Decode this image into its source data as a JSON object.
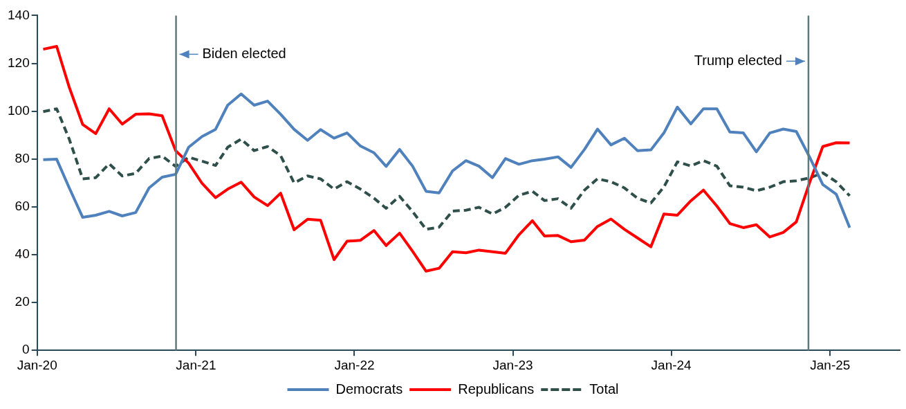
{
  "chart_data": {
    "type": "line",
    "x": [
      "2020-01-15",
      "2020-02-15",
      "2020-03-15",
      "2020-04-15",
      "2020-05-15",
      "2020-06-15",
      "2020-07-15",
      "2020-08-15",
      "2020-09-15",
      "2020-10-15",
      "2020-11-15",
      "2020-12-15",
      "2021-01-15",
      "2021-02-15",
      "2021-03-15",
      "2021-04-15",
      "2021-05-15",
      "2021-06-15",
      "2021-07-15",
      "2021-08-15",
      "2021-09-15",
      "2021-10-15",
      "2021-11-15",
      "2021-12-15",
      "2022-01-15",
      "2022-02-15",
      "2022-03-15",
      "2022-04-15",
      "2022-05-15",
      "2022-06-15",
      "2022-07-15",
      "2022-08-15",
      "2022-09-15",
      "2022-10-15",
      "2022-11-15",
      "2022-12-15",
      "2023-01-15",
      "2023-02-15",
      "2023-03-15",
      "2023-04-15",
      "2023-05-15",
      "2023-06-15",
      "2023-07-15",
      "2023-08-15",
      "2023-09-15",
      "2023-10-15",
      "2023-11-15",
      "2023-12-15",
      "2024-01-15",
      "2024-02-15",
      "2024-03-15",
      "2024-04-15",
      "2024-05-15",
      "2024-06-15",
      "2024-07-15",
      "2024-08-15",
      "2024-09-15",
      "2024-10-15",
      "2024-11-15",
      "2024-12-15",
      "2025-01-15",
      "2025-02-15"
    ],
    "series": [
      {
        "name": "Democrats",
        "color": "#4f81bd",
        "line_style": "solid",
        "values": [
          79.7,
          79.9,
          67.9,
          55.6,
          56.5,
          58.1,
          56.2,
          57.6,
          67.9,
          72.4,
          73.6,
          84.9,
          89.4,
          92.4,
          102.5,
          107.2,
          102.5,
          104.2,
          98.7,
          92.4,
          87.8,
          92.3,
          88.7,
          90.9,
          85.4,
          82.6,
          76.9,
          84,
          77,
          66.5,
          65.8,
          75,
          79.3,
          77,
          72.2,
          80.2,
          77.8,
          79.3,
          79.9,
          80.9,
          76.5,
          84,
          92.5,
          85.9,
          88.7,
          83.5,
          83.8,
          90.9,
          101.7,
          94.7,
          101,
          101,
          91.3,
          90.9,
          83,
          90.9,
          92.5,
          91.5,
          80.7,
          69.3,
          65.3,
          51.3
        ]
      },
      {
        "name": "Republicans",
        "color": "#ff0000",
        "line_style": "solid",
        "values": [
          125.9,
          127.1,
          110,
          94.4,
          90.6,
          101,
          94.6,
          98.7,
          98.9,
          98.1,
          83.5,
          78.3,
          69.8,
          63.8,
          67.4,
          70.3,
          64.1,
          60.5,
          65.7,
          50.4,
          54.8,
          54.4,
          37.9,
          45.6,
          46,
          50.1,
          43.8,
          49,
          41.4,
          33.1,
          34.3,
          41.2,
          40.8,
          41.9,
          41.2,
          40.6,
          48.3,
          54.2,
          47.8,
          48,
          45.4,
          46.1,
          51.8,
          54.9,
          50.6,
          47,
          43.3,
          57,
          56.5,
          62.5,
          67,
          60.3,
          53,
          51.3,
          52.5,
          47.4,
          49.3,
          53.7,
          70.3,
          85.2,
          86.8,
          86.7
        ]
      },
      {
        "name": "Total",
        "color": "#2f4f4a",
        "line_style": "dashed",
        "values": [
          99.8,
          101,
          88.3,
          71.7,
          72.2,
          78,
          72.9,
          74,
          80.2,
          81.2,
          76.9,
          80.7,
          79.1,
          77.3,
          84.9,
          88.3,
          83.5,
          85.2,
          81.4,
          70,
          72.9,
          71.7,
          67.4,
          70.5,
          67.4,
          63.6,
          59.4,
          64.4,
          58,
          50.6,
          51.5,
          58.2,
          58.6,
          59.8,
          57,
          59.8,
          64.8,
          66.5,
          62.6,
          63.4,
          59.4,
          67,
          71.7,
          70.5,
          67.9,
          63.6,
          61.6,
          68.3,
          78.8,
          77.1,
          79.3,
          77,
          68.8,
          68.2,
          66.7,
          68.2,
          70.5,
          70.9,
          72.1,
          74.2,
          70.5,
          64.6
        ]
      }
    ],
    "xlim": [
      "2020-01-01",
      "2025-06-12"
    ],
    "xticks": [
      {
        "value": "2020-01-01",
        "label": "Jan-20"
      },
      {
        "value": "2021-01-01",
        "label": "Jan-21"
      },
      {
        "value": "2022-01-01",
        "label": "Jan-22"
      },
      {
        "value": "2023-01-01",
        "label": "Jan-23"
      },
      {
        "value": "2024-01-01",
        "label": "Jan-24"
      },
      {
        "value": "2025-01-01",
        "label": "Jan-25"
      }
    ],
    "ylim": [
      0,
      140
    ],
    "yticks": [
      0,
      20,
      40,
      60,
      80,
      100,
      120,
      140
    ],
    "ref_lines": [
      {
        "axis": "x",
        "value": "2020-11-16",
        "label": "Biden elected",
        "color": "#5f7a7a"
      },
      {
        "axis": "x",
        "value": "2024-11-12",
        "label": "Trump elected",
        "color": "#5f7a7a"
      }
    ],
    "legend": "bottom",
    "grid": false,
    "marker": "none"
  }
}
